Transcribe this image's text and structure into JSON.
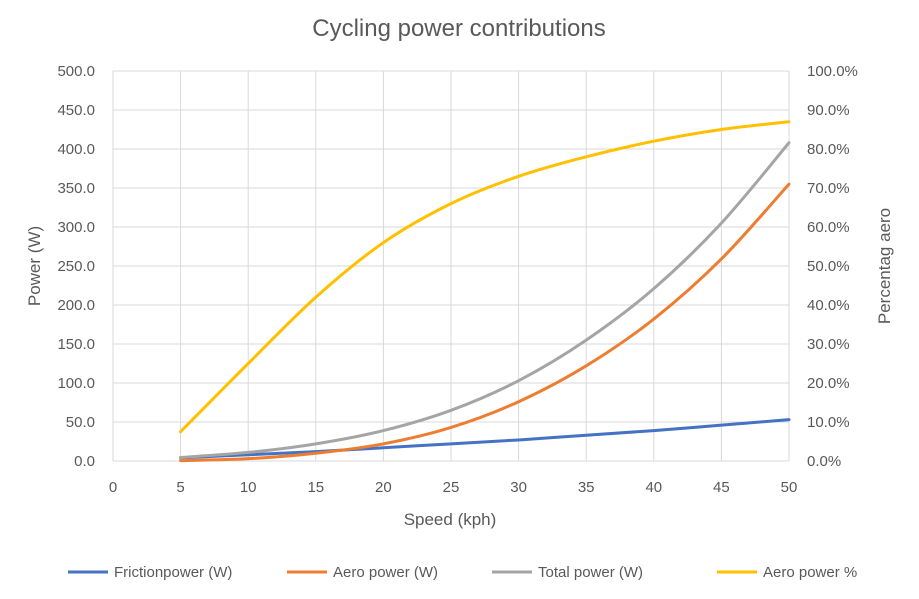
{
  "chart_data": {
    "type": "line",
    "title": "Cycling power contributions",
    "xlabel": "Speed (kph)",
    "ylabel": "Power (W)",
    "y2label": "Percentag aero",
    "xlim": [
      0,
      50
    ],
    "ylim": [
      0,
      500
    ],
    "y2lim": [
      0,
      1
    ],
    "x_ticks": [
      "0",
      "5",
      "10",
      "15",
      "20",
      "25",
      "30",
      "35",
      "40",
      "45",
      "50"
    ],
    "y_ticks": [
      "0.0",
      "50.0",
      "100.0",
      "150.0",
      "200.0",
      "250.0",
      "300.0",
      "350.0",
      "400.0",
      "450.0",
      "500.0"
    ],
    "y2_ticks": [
      "0.0%",
      "10.0%",
      "20.0%",
      "30.0%",
      "40.0%",
      "50.0%",
      "60.0%",
      "70.0%",
      "80.0%",
      "90.0%",
      "100.0%"
    ],
    "grid": "vertical and horizontal",
    "legend_position": "bottom",
    "x": [
      5,
      10,
      15,
      20,
      25,
      30,
      35,
      40,
      45,
      50
    ],
    "series": [
      {
        "name": "Frictionpower (W)",
        "axis": "left",
        "color": "#4472C4",
        "values": [
          4,
          8,
          12,
          17,
          22,
          27,
          33,
          39,
          46,
          53
        ]
      },
      {
        "name": "Aero power (W)",
        "axis": "left",
        "color": "#ED7D31",
        "values": [
          0.5,
          3,
          10,
          22,
          43,
          76,
          122,
          182,
          259,
          355
        ]
      },
      {
        "name": "Total power (W)",
        "axis": "left",
        "color": "#A5A5A5",
        "values": [
          4.5,
          11,
          22,
          39,
          65,
          103,
          155,
          221,
          305,
          408
        ]
      },
      {
        "name": "Aero power %",
        "axis": "right",
        "color": "#FFC000",
        "values": [
          0.075,
          0.25,
          0.42,
          0.56,
          0.66,
          0.73,
          0.78,
          0.82,
          0.85,
          0.87
        ]
      }
    ]
  }
}
